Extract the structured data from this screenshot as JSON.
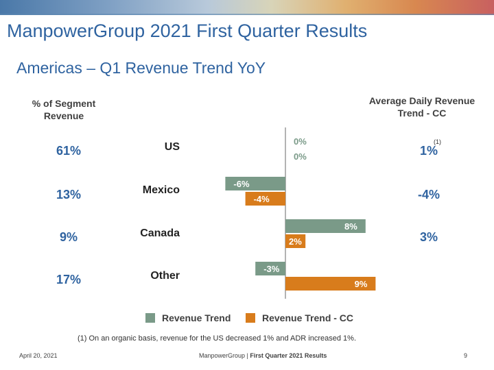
{
  "header": {
    "title": "ManpowerGroup 2021 First Quarter Results",
    "subtitle": "Americas – Q1 Revenue Trend YoY"
  },
  "columns": {
    "segment_header": "% of Segment Revenue",
    "adr_header": "Average Daily Revenue Trend - CC",
    "adr_note_marker": "(1)"
  },
  "rows": [
    {
      "label": "US",
      "segment_pct": "61%",
      "adr": "1%"
    },
    {
      "label": "Mexico",
      "segment_pct": "13%",
      "adr": "-4%"
    },
    {
      "label": "Canada",
      "segment_pct": "9%",
      "adr": "3%"
    },
    {
      "label": "Other",
      "segment_pct": "17%",
      "adr": ""
    }
  ],
  "chart_data": {
    "type": "bar",
    "orientation": "horizontal",
    "categories": [
      "US",
      "Mexico",
      "Canada",
      "Other"
    ],
    "series": [
      {
        "name": "Revenue Trend",
        "color": "#7a9a88",
        "values": [
          0,
          -6,
          8,
          -3
        ],
        "labels": [
          "0%",
          "-6%",
          "8%",
          "-3%"
        ]
      },
      {
        "name": "Revenue Trend - CC",
        "color": "#d87c1c",
        "values": [
          0,
          -4,
          2,
          9
        ],
        "labels": [
          "0%",
          "-4%",
          "2%",
          "9%"
        ]
      }
    ],
    "xlim": [
      -10,
      10
    ],
    "legend": "bottom"
  },
  "footnote": "(1)  On an organic basis, revenue for the US decreased 1% and ADR increased 1%.",
  "footer": {
    "date": "April 20, 2021",
    "center_brand": "ManpowerGroup  | ",
    "center_bold": "First Quarter 2021 Results",
    "page": "9"
  }
}
